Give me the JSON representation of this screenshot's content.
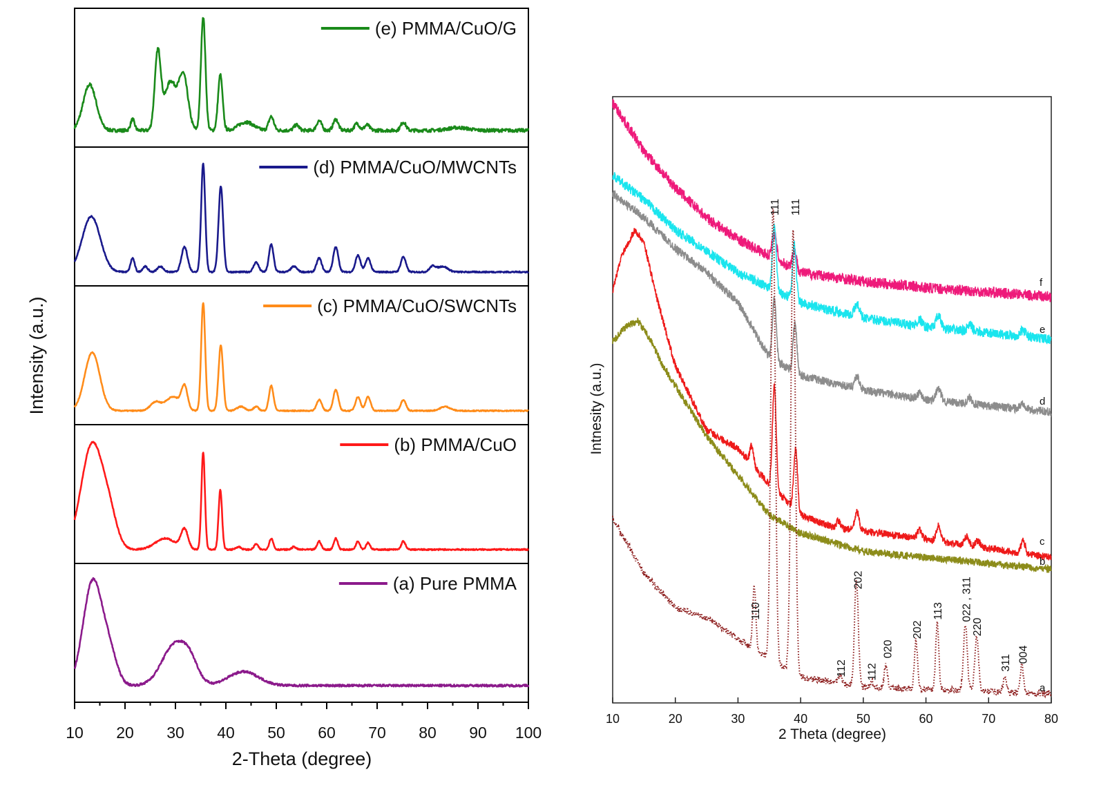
{
  "chart_data": [
    {
      "type": "line",
      "xlabel": "2-Theta (degree)",
      "ylabel": "Intensity (a.u.)",
      "xlim": [
        10,
        100
      ],
      "xticks": [
        10,
        20,
        30,
        40,
        50,
        60,
        70,
        80,
        90,
        100
      ],
      "layout": "stacked panels",
      "series": [
        {
          "name": "(e) PMMA/CuO/G",
          "color": "#1a8a1a",
          "baseline": 0.12,
          "noise": 0.012,
          "peaks": [
            [
              13,
              0.33,
              1.3
            ],
            [
              21.5,
              0.08,
              0.4
            ],
            [
              26.5,
              0.55,
              0.6
            ],
            [
              29,
              0.35,
              1.2
            ],
            [
              31.6,
              0.38,
              0.9
            ],
            [
              35.5,
              0.82,
              0.45
            ],
            [
              38.9,
              0.4,
              0.45
            ],
            [
              44,
              0.06,
              1.5
            ],
            [
              49,
              0.1,
              0.5
            ],
            [
              54,
              0.04,
              0.5
            ],
            [
              58.5,
              0.07,
              0.5
            ],
            [
              61.8,
              0.08,
              0.5
            ],
            [
              66,
              0.05,
              0.5
            ],
            [
              68,
              0.04,
              0.5
            ],
            [
              75.2,
              0.06,
              0.5
            ],
            [
              86,
              0.02,
              2
            ]
          ]
        },
        {
          "name": "(d) PMMA/CuO/MWCNTs",
          "color": "#1a1a8c",
          "baseline": 0.1,
          "noise": 0.005,
          "peaks": [
            [
              13.3,
              0.4,
              1.8
            ],
            [
              21.5,
              0.1,
              0.4
            ],
            [
              24,
              0.04,
              0.5
            ],
            [
              27,
              0.04,
              0.6
            ],
            [
              31.8,
              0.18,
              0.6
            ],
            [
              35.5,
              0.78,
              0.4
            ],
            [
              39,
              0.62,
              0.45
            ],
            [
              46,
              0.07,
              0.5
            ],
            [
              49,
              0.2,
              0.45
            ],
            [
              53.5,
              0.04,
              0.6
            ],
            [
              58.5,
              0.1,
              0.5
            ],
            [
              61.8,
              0.18,
              0.5
            ],
            [
              66.2,
              0.12,
              0.5
            ],
            [
              68.2,
              0.1,
              0.5
            ],
            [
              75.2,
              0.11,
              0.5
            ],
            [
              81,
              0.04,
              0.6
            ],
            [
              83,
              0.04,
              1
            ]
          ]
        },
        {
          "name": "(c) PMMA/CuO/SWCNTs",
          "color": "#ff8c1a",
          "baseline": 0.1,
          "noise": 0.004,
          "peaks": [
            [
              13.5,
              0.42,
              1.5
            ],
            [
              26,
              0.06,
              1
            ],
            [
              29.5,
              0.1,
              1.5
            ],
            [
              31.8,
              0.16,
              0.6
            ],
            [
              35.5,
              0.78,
              0.4
            ],
            [
              39,
              0.47,
              0.45
            ],
            [
              43,
              0.03,
              0.8
            ],
            [
              46,
              0.03,
              0.5
            ],
            [
              49,
              0.18,
              0.45
            ],
            [
              58.5,
              0.08,
              0.5
            ],
            [
              61.8,
              0.15,
              0.5
            ],
            [
              66.2,
              0.1,
              0.5
            ],
            [
              68.2,
              0.1,
              0.5
            ],
            [
              75.2,
              0.08,
              0.5
            ],
            [
              83.5,
              0.03,
              1
            ]
          ]
        },
        {
          "name": "(b)  PMMA/CuO",
          "color": "#ff1a1a",
          "baseline": 0.1,
          "noise": 0.005,
          "peaks": [
            [
              13.5,
              0.76,
              2.2
            ],
            [
              17,
              0.18,
              1.5
            ],
            [
              28,
              0.08,
              2
            ],
            [
              31.8,
              0.14,
              0.7
            ],
            [
              35.5,
              0.7,
              0.35
            ],
            [
              38.9,
              0.43,
              0.35
            ],
            [
              42.5,
              0.02,
              0.5
            ],
            [
              46,
              0.04,
              0.4
            ],
            [
              49,
              0.08,
              0.4
            ],
            [
              53.5,
              0.02,
              0.4
            ],
            [
              58.5,
              0.06,
              0.4
            ],
            [
              61.8,
              0.08,
              0.4
            ],
            [
              66.2,
              0.06,
              0.4
            ],
            [
              68.2,
              0.05,
              0.4
            ],
            [
              75.2,
              0.06,
              0.4
            ]
          ]
        },
        {
          "name": "(a) Pure PMMA",
          "color": "#8b1a8b",
          "baseline": 0.12,
          "noise": 0.008,
          "peaks": [
            [
              13.6,
              0.75,
              1.9
            ],
            [
              17,
              0.2,
              1.5
            ],
            [
              30,
              0.3,
              2.6
            ],
            [
              33,
              0.1,
              1.5
            ],
            [
              43.5,
              0.1,
              3
            ]
          ]
        }
      ]
    },
    {
      "type": "line",
      "xlabel": "2 Theta (degree)",
      "ylabel": "Intnesity (a.u.)",
      "xlim": [
        10,
        80
      ],
      "ylim": [
        0,
        100
      ],
      "xticks": [
        10,
        20,
        30,
        40,
        50,
        60,
        70,
        80
      ],
      "series": [
        {
          "name": "f",
          "color": "#ee1a7a",
          "style": "solid",
          "noise": 0.9,
          "baseline": [
            [
              10,
              99
            ],
            [
              15,
              91
            ],
            [
              20,
              85
            ],
            [
              25,
              80
            ],
            [
              30,
              76.5
            ],
            [
              40,
              71
            ],
            [
              50,
              69.5
            ],
            [
              60,
              68.5
            ],
            [
              80,
              67
            ]
          ],
          "peaks": [
            [
              35.8,
              4,
              0.35
            ],
            [
              39,
              3,
              0.35
            ]
          ]
        },
        {
          "name": "e",
          "color": "#1ae5ee",
          "style": "solid",
          "noise": 0.8,
          "baseline": [
            [
              10,
              87
            ],
            [
              15,
              83
            ],
            [
              20,
              78
            ],
            [
              30,
              71
            ],
            [
              40,
              66
            ],
            [
              50,
              63.5
            ],
            [
              60,
              62
            ],
            [
              80,
              60
            ]
          ],
          "peaks": [
            [
              35.8,
              11,
              0.3
            ],
            [
              39,
              9,
              0.3
            ],
            [
              49,
              2,
              0.4
            ],
            [
              59,
              1,
              0.4
            ],
            [
              62,
              2,
              0.4
            ],
            [
              67,
              1,
              0.4
            ],
            [
              75.5,
              1,
              0.4
            ]
          ]
        },
        {
          "name": "d",
          "color": "#8c8c8c",
          "style": "solid",
          "noise": 0.7,
          "baseline": [
            [
              10,
              84
            ],
            [
              15,
              80
            ],
            [
              20,
              75
            ],
            [
              25,
              71
            ],
            [
              30,
              66
            ],
            [
              35,
              57
            ],
            [
              40,
              54
            ],
            [
              50,
              51.6
            ],
            [
              60,
              50
            ],
            [
              80,
              48
            ]
          ],
          "peaks": [
            [
              35.8,
              10,
              0.3
            ],
            [
              39.1,
              8,
              0.3
            ],
            [
              49,
              2,
              0.4
            ],
            [
              59,
              1,
              0.4
            ],
            [
              62,
              2,
              0.4
            ],
            [
              67,
              1,
              0.4
            ],
            [
              75.5,
              1,
              0.4
            ]
          ]
        },
        {
          "name": "c",
          "color": "#ee1a1a",
          "style": "solid",
          "noise": 0.6,
          "baseline": [
            [
              10,
              68
            ],
            [
              11.5,
              74
            ],
            [
              13.5,
              78
            ],
            [
              15,
              76
            ],
            [
              17,
              67
            ],
            [
              20,
              55.6
            ],
            [
              25,
              45
            ],
            [
              30,
              42
            ],
            [
              35,
              36
            ],
            [
              40,
              31
            ],
            [
              45,
              29
            ],
            [
              60,
              27
            ],
            [
              80,
              24
            ]
          ],
          "peaks": [
            [
              32.2,
              3,
              0.3
            ],
            [
              35.8,
              17,
              0.3
            ],
            [
              39.2,
              10,
              0.3
            ],
            [
              46,
              1.2,
              0.3
            ],
            [
              49,
              3,
              0.35
            ],
            [
              59,
              1.5,
              0.35
            ],
            [
              62,
              2.5,
              0.35
            ],
            [
              66.5,
              1.5,
              0.35
            ],
            [
              68.3,
              1,
              0.35
            ],
            [
              75.5,
              2,
              0.35
            ]
          ]
        },
        {
          "name": "b",
          "color": "#8c8c1a",
          "style": "solid",
          "noise": 0.6,
          "baseline": [
            [
              10,
              59.6
            ],
            [
              12,
              62
            ],
            [
              14,
              63
            ],
            [
              16,
              60
            ],
            [
              18,
              55.6
            ],
            [
              25,
              44
            ],
            [
              30,
              37.5
            ],
            [
              35,
              31
            ],
            [
              40,
              28
            ],
            [
              50,
              25
            ],
            [
              60,
              24
            ],
            [
              80,
              22
            ]
          ],
          "peaks": []
        },
        {
          "name": "a",
          "color": "#8b1a1a",
          "style": "dotted",
          "noise": 0.5,
          "baseline": [
            [
              10,
              30.5
            ],
            [
              15,
              21.4
            ],
            [
              20,
              15.7
            ],
            [
              25,
              14
            ],
            [
              30,
              10.6
            ],
            [
              35,
              7.2
            ],
            [
              40,
              4.3
            ],
            [
              50,
              2.6
            ],
            [
              80,
              1.5
            ]
          ],
          "peaks": [
            [
              32.6,
              10.5,
              0.25
            ],
            [
              35.6,
              75,
              0.35
            ],
            [
              38.8,
              73,
              0.35
            ],
            [
              46.3,
              1.5,
              0.25
            ],
            [
              48.9,
              17.5,
              0.3
            ],
            [
              51.4,
              1,
              0.25
            ],
            [
              53.6,
              4,
              0.25
            ],
            [
              58.4,
              8,
              0.25
            ],
            [
              61.8,
              11,
              0.25
            ],
            [
              66.3,
              11,
              0.3
            ],
            [
              68.1,
              9,
              0.3
            ],
            [
              72.6,
              2.5,
              0.25
            ],
            [
              75.3,
              4.5,
              0.25
            ]
          ]
        }
      ],
      "annotations": [
        {
          "text": "110",
          "x": 32.7
        },
        {
          "text": "111",
          "x": 35.8
        },
        {
          "text": "111",
          "x": 39.1
        },
        {
          "text": "112",
          "x": 46.4
        },
        {
          "text": "202",
          "x": 49.1
        },
        {
          "text": "112",
          "x": 51.3
        },
        {
          "text": "020",
          "x": 53.8
        },
        {
          "text": "202",
          "x": 58.5
        },
        {
          "text": "113",
          "x": 61.8
        },
        {
          "text": "022 , 311",
          "x": 66.4
        },
        {
          "text": "220",
          "x": 68.1
        },
        {
          "text": "311",
          "x": 72.6
        },
        {
          "text": "004",
          "x": 75.4
        }
      ]
    }
  ]
}
